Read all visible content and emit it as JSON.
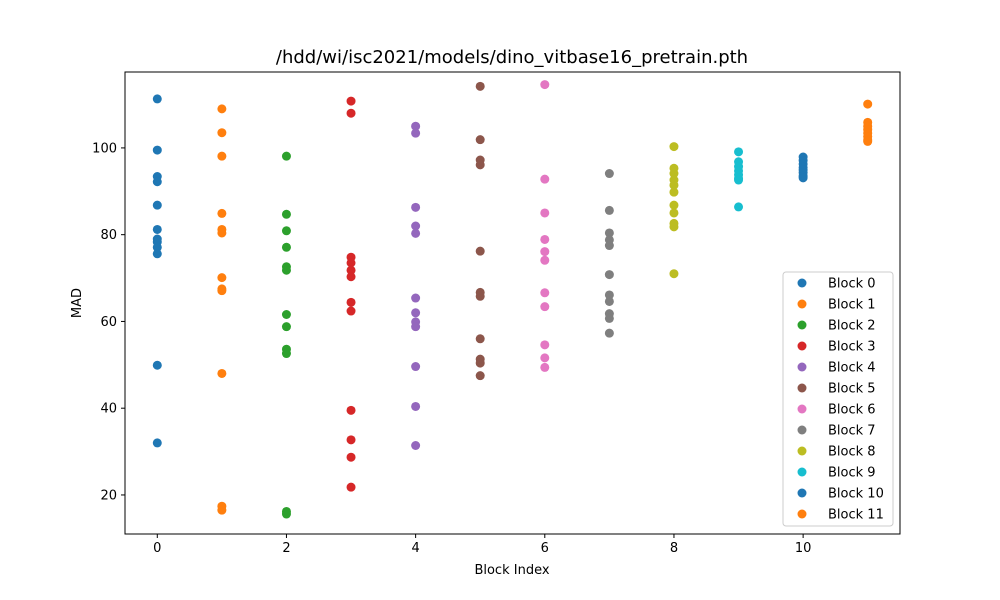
{
  "chart_data": {
    "type": "scatter",
    "title": "/hdd/wi/isc2021/models/dino_vitbase16_pretrain.pth",
    "xlabel": "Block Index",
    "ylabel": "MAD",
    "xlim": [
      -0.5,
      11.5
    ],
    "ylim": [
      11,
      117.5
    ],
    "xticks": [
      0,
      2,
      4,
      6,
      8,
      10
    ],
    "yticks": [
      20,
      40,
      60,
      80,
      100
    ],
    "grid": false,
    "legend_position": "lower-right",
    "series": [
      {
        "name": "Block 0",
        "color": "#1f77b4",
        "x": 0,
        "values": [
          111.3,
          99.5,
          93.4,
          92.2,
          86.8,
          81.2,
          79.0,
          78.3,
          77.1,
          75.6,
          49.9,
          32.0
        ]
      },
      {
        "name": "Block 1",
        "color": "#ff7f0e",
        "x": 1,
        "values": [
          109.0,
          103.5,
          98.1,
          84.9,
          81.2,
          80.4,
          70.1,
          67.5,
          67.1,
          48.0,
          17.4,
          16.5
        ]
      },
      {
        "name": "Block 2",
        "color": "#2ca02c",
        "x": 2,
        "values": [
          98.1,
          84.7,
          80.9,
          77.1,
          72.6,
          71.8,
          61.6,
          58.8,
          53.6,
          52.6,
          16.2,
          15.6
        ]
      },
      {
        "name": "Block 3",
        "color": "#d62728",
        "x": 3,
        "values": [
          110.8,
          108.0,
          74.8,
          73.5,
          71.8,
          70.3,
          64.4,
          62.4,
          39.5,
          32.7,
          28.7,
          21.8
        ]
      },
      {
        "name": "Block 4",
        "color": "#9467bd",
        "x": 4,
        "values": [
          105.0,
          103.4,
          86.3,
          82.0,
          80.3,
          65.4,
          62.0,
          59.9,
          58.8,
          49.6,
          40.4,
          31.4
        ]
      },
      {
        "name": "Block 5",
        "color": "#8c564b",
        "x": 5,
        "values": [
          114.2,
          101.9,
          97.2,
          96.1,
          76.2,
          66.7,
          65.8,
          56.0,
          51.3,
          50.4,
          47.5
        ]
      },
      {
        "name": "Block 6",
        "color": "#e377c2",
        "x": 6,
        "values": [
          114.6,
          92.8,
          85.0,
          78.9,
          76.1,
          74.1,
          66.6,
          63.4,
          54.6,
          51.6,
          49.4
        ]
      },
      {
        "name": "Block 7",
        "color": "#7f7f7f",
        "x": 7,
        "values": [
          94.1,
          85.6,
          80.4,
          78.8,
          77.5,
          70.8,
          66.1,
          64.6,
          61.8,
          60.7,
          57.3
        ]
      },
      {
        "name": "Block 8",
        "color": "#bcbd22",
        "x": 8,
        "values": [
          100.3,
          95.3,
          94.1,
          92.6,
          91.4,
          89.8,
          86.8,
          85.0,
          82.6,
          81.8,
          71.0
        ]
      },
      {
        "name": "Block 9",
        "color": "#17becf",
        "x": 9,
        "values": [
          99.1,
          96.8,
          95.7,
          94.7,
          93.8,
          93.0,
          92.6,
          86.4
        ]
      },
      {
        "name": "Block 10",
        "color": "#1f77b4",
        "x": 10,
        "values": [
          97.9,
          97.1,
          96.3,
          95.5,
          94.9,
          94.3,
          93.5,
          93.1
        ]
      },
      {
        "name": "Block 11",
        "color": "#ff7f0e",
        "x": 11,
        "values": [
          110.1,
          105.9,
          105.0,
          104.2,
          103.4,
          102.6,
          101.8,
          101.5
        ]
      }
    ]
  }
}
